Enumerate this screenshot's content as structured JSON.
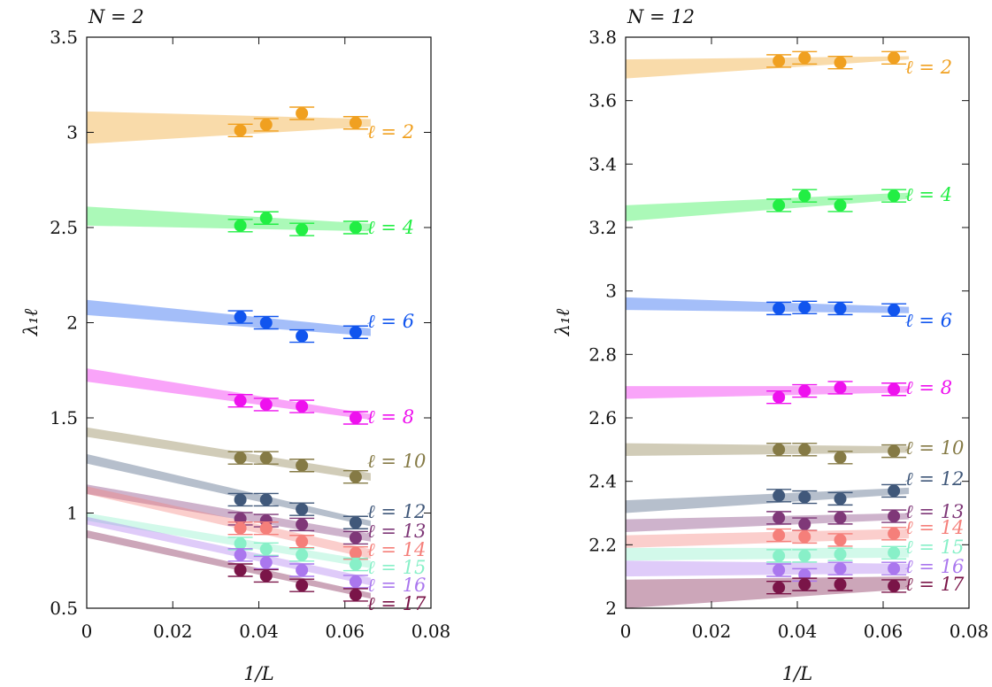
{
  "chart_data": [
    {
      "type": "scatter",
      "title": "N = 2",
      "xlabel": "1/L",
      "ylabel": "λ₁ℓ",
      "xlim": [
        0,
        0.08
      ],
      "ylim": [
        0.5,
        3.5
      ],
      "xticks": [
        "0",
        "0.02",
        "0.04",
        "0.06",
        "0.08"
      ],
      "yticks": [
        "0.5",
        "1",
        "1.5",
        "2",
        "2.5",
        "3",
        "3.5"
      ],
      "grid": false,
      "series": [
        {
          "name": "ℓ = 2",
          "color": "#f0a020",
          "x": [
            0.0357,
            0.0417,
            0.05,
            0.0625
          ],
          "y": [
            3.01,
            3.04,
            3.1,
            3.05
          ],
          "band_start": [
            2.94,
            3.11
          ],
          "band_end": [
            3.03,
            3.07
          ]
        },
        {
          "name": "ℓ = 4",
          "color": "#22ee44",
          "x": [
            0.0357,
            0.0417,
            0.05,
            0.0625
          ],
          "y": [
            2.51,
            2.55,
            2.49,
            2.5
          ],
          "band_start": [
            2.51,
            2.61
          ],
          "band_end": [
            2.48,
            2.52
          ]
        },
        {
          "name": "ℓ = 6",
          "color": "#1155ee",
          "x": [
            0.0357,
            0.0417,
            0.05,
            0.0625
          ],
          "y": [
            2.03,
            2.0,
            1.93,
            1.95
          ],
          "band_start": [
            2.04,
            2.12
          ],
          "band_end": [
            1.93,
            1.97
          ]
        },
        {
          "name": "ℓ = 8",
          "color": "#ee11ee",
          "x": [
            0.0357,
            0.0417,
            0.05,
            0.0625
          ],
          "y": [
            1.59,
            1.57,
            1.56,
            1.5
          ],
          "band_start": [
            1.69,
            1.76
          ],
          "band_end": [
            1.49,
            1.52
          ]
        },
        {
          "name": "ℓ = 10",
          "color": "#857a45",
          "x": [
            0.0357,
            0.0417,
            0.05,
            0.0625
          ],
          "y": [
            1.29,
            1.29,
            1.25,
            1.19
          ],
          "band_start": [
            1.4,
            1.45
          ],
          "band_end": [
            1.17,
            1.21
          ]
        },
        {
          "name": "ℓ = 12",
          "color": "#40587a",
          "x": [
            0.0357,
            0.0417,
            0.05,
            0.0625
          ],
          "y": [
            1.07,
            1.07,
            1.02,
            0.95
          ],
          "band_start": [
            1.26,
            1.31
          ],
          "band_end": [
            0.93,
            0.96
          ]
        },
        {
          "name": "ℓ = 13",
          "color": "#7f3878",
          "x": [
            0.0357,
            0.0417,
            0.05,
            0.0625
          ],
          "y": [
            0.97,
            0.96,
            0.94,
            0.87
          ],
          "band_start": [
            1.1,
            1.15
          ],
          "band_end": [
            0.85,
            0.89
          ]
        },
        {
          "name": "ℓ = 14",
          "color": "#f57f7a",
          "x": [
            0.0357,
            0.0417,
            0.05,
            0.0625
          ],
          "y": [
            0.92,
            0.92,
            0.85,
            0.79
          ],
          "band_start": [
            1.1,
            1.14
          ],
          "band_end": [
            0.76,
            0.81
          ]
        },
        {
          "name": "ℓ = 15",
          "color": "#88f0c8",
          "x": [
            0.0357,
            0.0417,
            0.05,
            0.0625
          ],
          "y": [
            0.84,
            0.81,
            0.78,
            0.73
          ],
          "band_start": [
            0.96,
            1.0
          ],
          "band_end": [
            0.71,
            0.75
          ]
        },
        {
          "name": "ℓ = 16",
          "color": "#aa77ee",
          "x": [
            0.0357,
            0.0417,
            0.05,
            0.0625
          ],
          "y": [
            0.78,
            0.74,
            0.7,
            0.64
          ],
          "band_start": [
            0.94,
            0.98
          ],
          "band_end": [
            0.62,
            0.66
          ]
        },
        {
          "name": "ℓ = 17",
          "color": "#7a1548",
          "x": [
            0.0357,
            0.0417,
            0.05,
            0.0625
          ],
          "y": [
            0.7,
            0.67,
            0.62,
            0.57
          ],
          "band_start": [
            0.87,
            0.91
          ],
          "band_end": [
            0.55,
            0.58
          ]
        }
      ]
    },
    {
      "type": "scatter",
      "title": "N = 12",
      "xlabel": "1/L",
      "ylabel": "λ₁ℓ",
      "xlim": [
        0,
        0.08
      ],
      "ylim": [
        2,
        3.8
      ],
      "xticks": [
        "0",
        "0.02",
        "0.04",
        "0.06",
        "0.08"
      ],
      "yticks": [
        "2",
        "2.2",
        "2.4",
        "2.6",
        "2.8",
        "3",
        "3.2",
        "3.4",
        "3.6",
        "3.8"
      ],
      "grid": false,
      "series": [
        {
          "name": "ℓ = 2",
          "color": "#f0a020",
          "x": [
            0.0357,
            0.0417,
            0.05,
            0.0625
          ],
          "y": [
            3.725,
            3.735,
            3.72,
            3.735
          ],
          "band_start": [
            3.67,
            3.73
          ],
          "band_end": [
            3.73,
            3.74
          ]
        },
        {
          "name": "ℓ = 4",
          "color": "#22ee44",
          "x": [
            0.0357,
            0.0417,
            0.05,
            0.0625
          ],
          "y": [
            3.27,
            3.3,
            3.27,
            3.3
          ],
          "band_start": [
            3.22,
            3.27
          ],
          "band_end": [
            3.29,
            3.31
          ]
        },
        {
          "name": "ℓ = 6",
          "color": "#1155ee",
          "x": [
            0.0357,
            0.0417,
            0.05,
            0.0625
          ],
          "y": [
            2.945,
            2.948,
            2.945,
            2.94
          ],
          "band_start": [
            2.94,
            2.98
          ],
          "band_end": [
            2.93,
            2.95
          ]
        },
        {
          "name": "ℓ = 8",
          "color": "#ee11ee",
          "x": [
            0.0357,
            0.0417,
            0.05,
            0.0625
          ],
          "y": [
            2.665,
            2.685,
            2.695,
            2.69
          ],
          "band_start": [
            2.66,
            2.7
          ],
          "band_end": [
            2.68,
            2.7
          ]
        },
        {
          "name": "ℓ = 10",
          "color": "#857a45",
          "x": [
            0.0357,
            0.0417,
            0.05,
            0.0625
          ],
          "y": [
            2.5,
            2.5,
            2.475,
            2.495
          ],
          "band_start": [
            2.48,
            2.52
          ],
          "band_end": [
            2.49,
            2.51
          ]
        },
        {
          "name": "ℓ = 12",
          "color": "#40587a",
          "x": [
            0.0357,
            0.0417,
            0.05,
            0.0625
          ],
          "y": [
            2.355,
            2.35,
            2.345,
            2.37
          ],
          "band_start": [
            2.3,
            2.34
          ],
          "band_end": [
            2.36,
            2.38
          ]
        },
        {
          "name": "ℓ = 13",
          "color": "#7f3878",
          "x": [
            0.0357,
            0.0417,
            0.05,
            0.0625
          ],
          "y": [
            2.285,
            2.265,
            2.285,
            2.29
          ],
          "band_start": [
            2.24,
            2.28
          ],
          "band_end": [
            2.28,
            2.3
          ]
        },
        {
          "name": "ℓ = 14",
          "color": "#f57f7a",
          "x": [
            0.0357,
            0.0417,
            0.05,
            0.0625
          ],
          "y": [
            2.23,
            2.225,
            2.215,
            2.235
          ],
          "band_start": [
            2.19,
            2.23
          ],
          "band_end": [
            2.22,
            2.25
          ]
        },
        {
          "name": "ℓ = 15",
          "color": "#88f0c8",
          "x": [
            0.0357,
            0.0417,
            0.05,
            0.0625
          ],
          "y": [
            2.165,
            2.165,
            2.17,
            2.175
          ],
          "band_start": [
            2.15,
            2.19
          ],
          "band_end": [
            2.16,
            2.19
          ]
        },
        {
          "name": "ℓ = 16",
          "color": "#aa77ee",
          "x": [
            0.0357,
            0.0417,
            0.05,
            0.0625
          ],
          "y": [
            2.12,
            2.105,
            2.125,
            2.125
          ],
          "band_start": [
            2.1,
            2.15
          ],
          "band_end": [
            2.11,
            2.14
          ]
        },
        {
          "name": "ℓ = 17",
          "color": "#7a1548",
          "x": [
            0.0357,
            0.0417,
            0.05,
            0.0625
          ],
          "y": [
            2.065,
            2.075,
            2.075,
            2.07
          ],
          "band_start": [
            2.0,
            2.09
          ],
          "band_end": [
            2.06,
            2.1
          ]
        }
      ]
    }
  ]
}
